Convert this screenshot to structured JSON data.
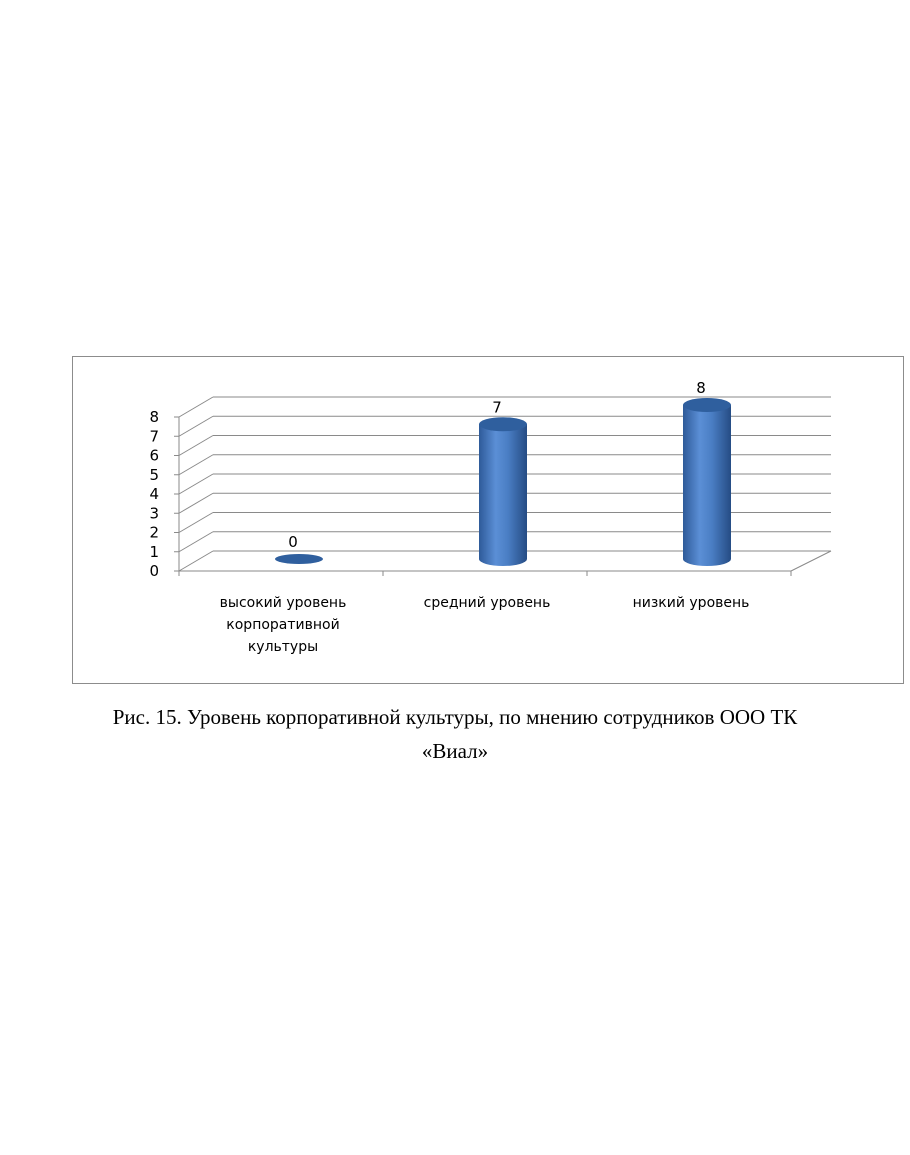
{
  "chart_data": {
    "type": "bar",
    "style": "3d-cylinder",
    "categories": [
      [
        "высокий уровень",
        "корпоративной",
        "культуры"
      ],
      [
        "средний уровень"
      ],
      [
        "низкий уровень"
      ]
    ],
    "values": [
      0,
      7,
      8
    ],
    "data_labels": [
      "0",
      "7",
      "8"
    ],
    "ylim": [
      0,
      8
    ],
    "yticks": [
      "0",
      "1",
      "2",
      "3",
      "4",
      "5",
      "6",
      "7",
      "8"
    ],
    "grid": true,
    "legend": "none",
    "bar_color": "#4a7ec4"
  },
  "caption": {
    "line1": "Рис. 15. Уровень корпоративной культуры, по мнению сотрудников ООО ТК",
    "line2": "«Виал»"
  }
}
